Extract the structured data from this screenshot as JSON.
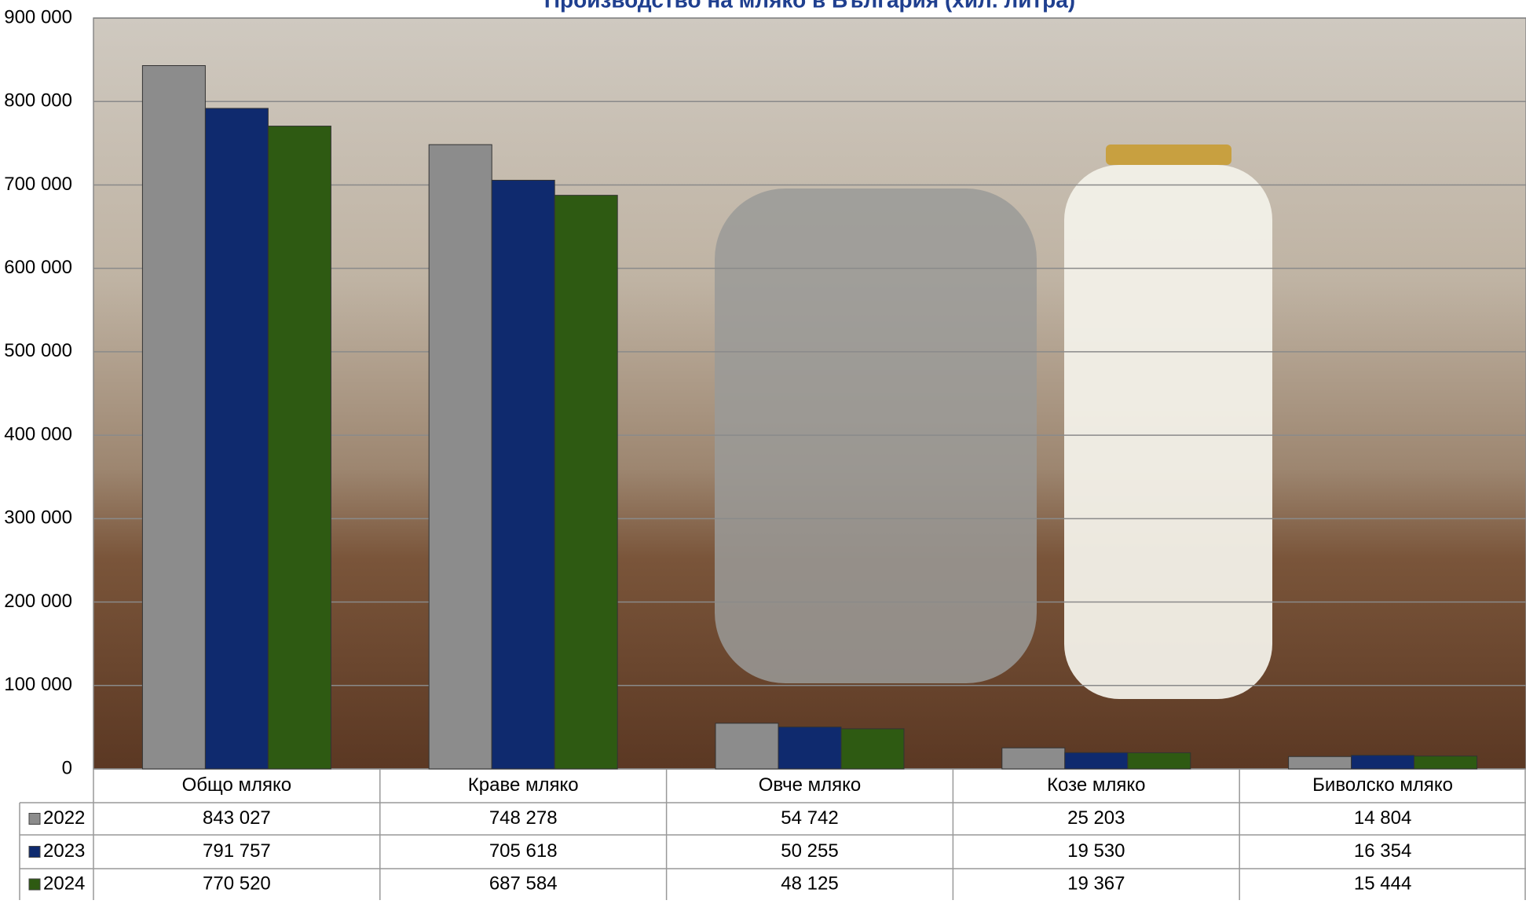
{
  "chart_data": {
    "type": "bar",
    "title": "Производство на мляко в България (хил. литра)",
    "categories": [
      "Общо мляко",
      "Краве мляко",
      "Овче мляко",
      "Козе мляко",
      "Биволско мляко"
    ],
    "series": [
      {
        "name": "2022",
        "color": "#8c8c8c",
        "values": [
          843027,
          748278,
          54742,
          25203,
          14804
        ],
        "value_labels": [
          "843 027",
          "748 278",
          "54 742",
          "25 203",
          "14 804"
        ]
      },
      {
        "name": "2023",
        "color": "#0f2a6e",
        "values": [
          791757,
          705618,
          50255,
          19530,
          16354
        ],
        "value_labels": [
          "791 757",
          "705 618",
          "50 255",
          "19 530",
          "16 354"
        ]
      },
      {
        "name": "2024",
        "color": "#2e5a12",
        "values": [
          770520,
          687584,
          48125,
          19367,
          15444
        ],
        "value_labels": [
          "770 520",
          "687 584",
          "48 125",
          "19 367",
          "15 444"
        ]
      }
    ],
    "ylim": [
      0,
      900000
    ],
    "yticks": [
      0,
      {
        "value": 100000,
        "label": "100 000"
      },
      {
        "value": 200000,
        "label": "200 000"
      },
      {
        "value": 300000,
        "label": "300 000"
      },
      {
        "value": 400000,
        "label": "400 000"
      },
      {
        "value": 500000,
        "label": "500 000"
      },
      {
        "value": 600000,
        "label": "600 000"
      },
      {
        "value": 700000,
        "label": "700 000"
      },
      {
        "value": 800000,
        "label": "800 000"
      },
      {
        "value": 900000,
        "label": "900 000"
      }
    ],
    "grid": true
  }
}
